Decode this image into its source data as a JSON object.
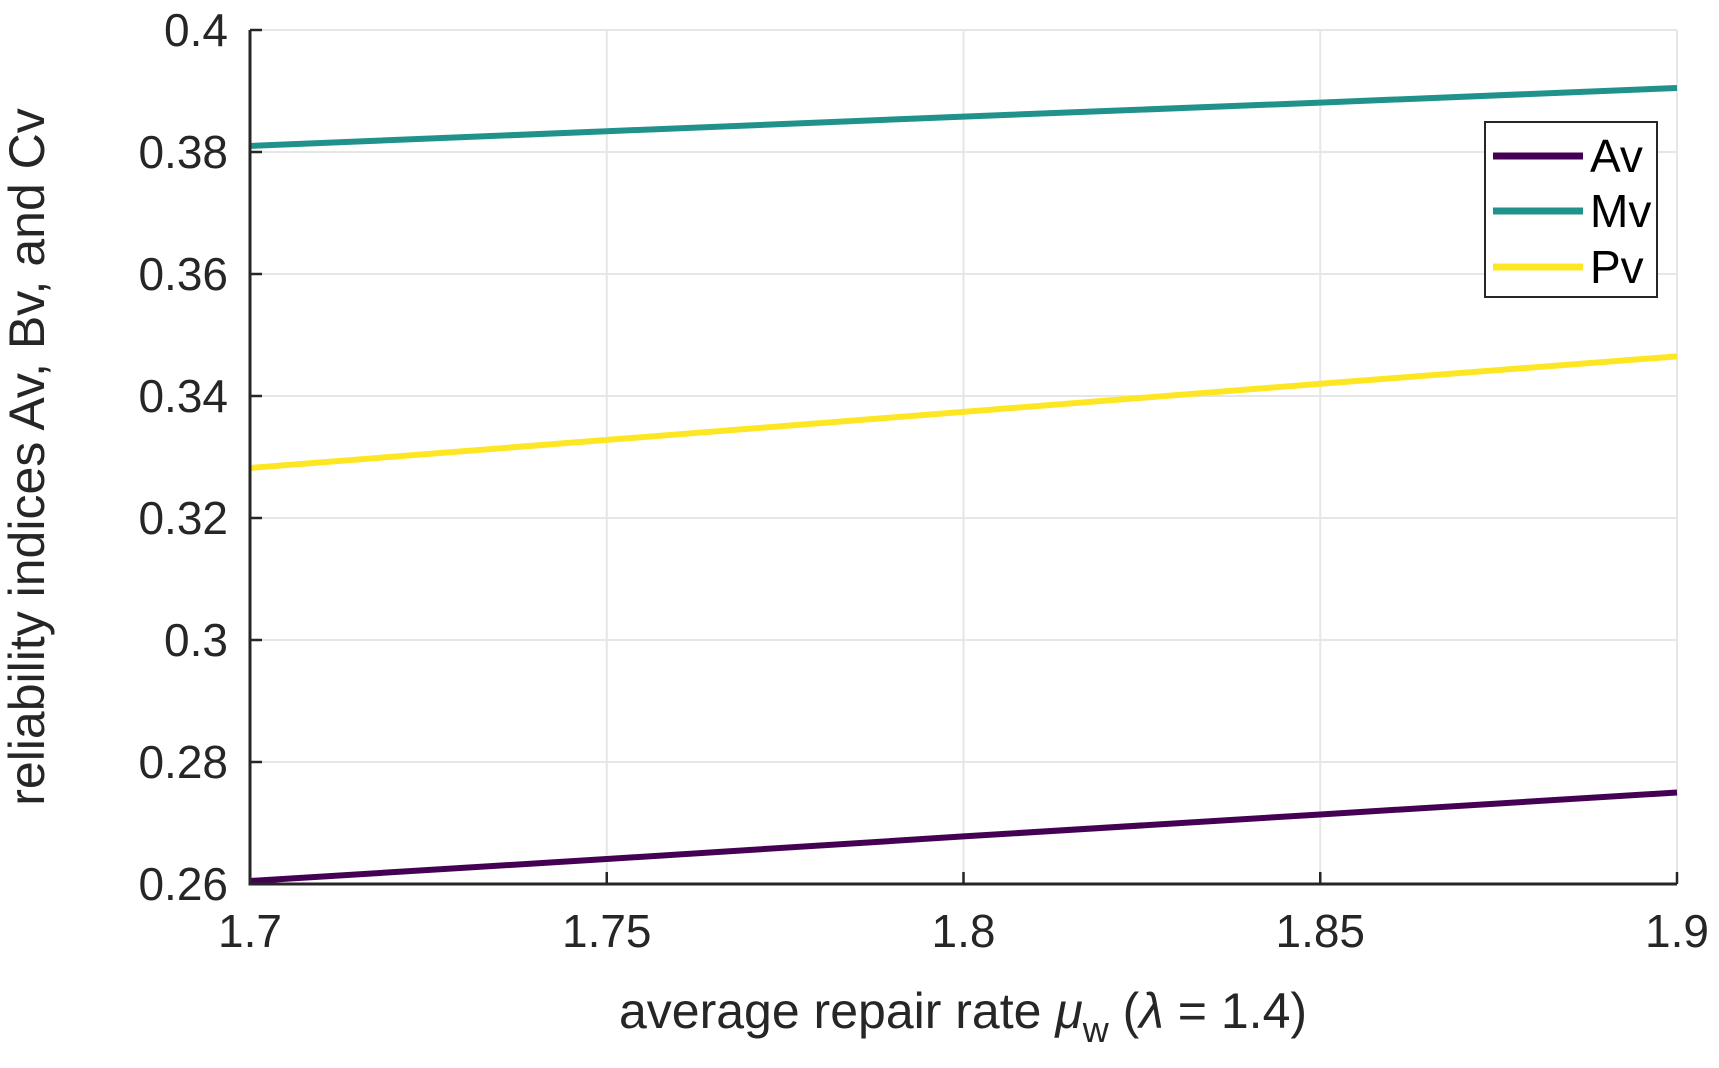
{
  "chart_data": {
    "type": "line",
    "title": "",
    "ylabel": "reliability indices Av, Bv, and Cv",
    "xlabel": {
      "pre": "average repair rate ",
      "mu": "μ",
      "mu_sub": "w",
      "mid": " (",
      "lambda": "λ",
      "post": " = 1.4)"
    },
    "xlim": [
      1.7,
      1.9
    ],
    "ylim": [
      0.26,
      0.4
    ],
    "x_ticks": [
      {
        "value": 1.7,
        "label": "1.7"
      },
      {
        "value": 1.75,
        "label": "1.75"
      },
      {
        "value": 1.8,
        "label": "1.8"
      },
      {
        "value": 1.85,
        "label": "1.85"
      },
      {
        "value": 1.9,
        "label": "1.9"
      }
    ],
    "y_ticks": [
      {
        "value": 0.26,
        "label": "0.26"
      },
      {
        "value": 0.28,
        "label": "0.28"
      },
      {
        "value": 0.3,
        "label": "0.3"
      },
      {
        "value": 0.32,
        "label": "0.32"
      },
      {
        "value": 0.34,
        "label": "0.34"
      },
      {
        "value": 0.36,
        "label": "0.36"
      },
      {
        "value": 0.38,
        "label": "0.38"
      },
      {
        "value": 0.4,
        "label": "0.4"
      }
    ],
    "grid": true,
    "legend": {
      "position": "northeast",
      "entries": [
        "Av",
        "Mv",
        "Pv"
      ]
    },
    "x": [
      1.7,
      1.75,
      1.8,
      1.85,
      1.9
    ],
    "series": [
      {
        "name": "Av",
        "color": "#440154",
        "values": [
          0.2605,
          0.2641,
          0.2678,
          0.2714,
          0.275
        ]
      },
      {
        "name": "Mv",
        "color": "#21918c",
        "values": [
          0.381,
          0.3834,
          0.3858,
          0.3881,
          0.3905
        ]
      },
      {
        "name": "Pv",
        "color": "#fde725",
        "values": [
          0.3282,
          0.3328,
          0.3374,
          0.342,
          0.3465
        ]
      }
    ],
    "colors": {
      "axis": "#262626",
      "grid": "#e6e6e6",
      "tick_label": "#262626",
      "background": "#ffffff",
      "legend_border": "#262626",
      "legend_text": "#000000"
    }
  }
}
